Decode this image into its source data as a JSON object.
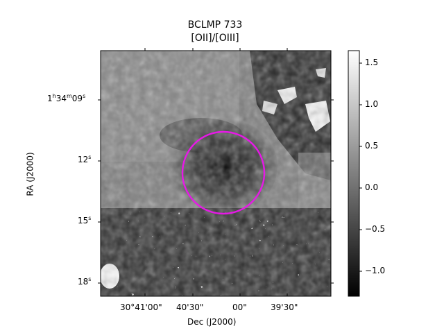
{
  "figure": {
    "title_line1": "BCLMP 733",
    "title_line2": "[OII]/[OIII]",
    "xlabel": "Dec (J2000)",
    "ylabel": "RA (J2000)",
    "x_ticks": [
      "30°41'00\"",
      "40'30\"",
      "00\"",
      "39'30\""
    ],
    "y_ticks": [
      {
        "h": "1",
        "m": "34",
        "s": "09",
        "parts": true
      },
      {
        "label": "12",
        "sup": "s"
      },
      {
        "label": "15",
        "sup": "s"
      },
      {
        "label": "18",
        "sup": "s"
      }
    ],
    "colorbar": {
      "ticks": [
        "1.5",
        "1.0",
        "0.5",
        "0.0",
        "−0.5",
        "−1.0"
      ],
      "values": [
        1.5,
        1.0,
        0.5,
        0.0,
        -0.5,
        -1.0
      ],
      "range": [
        -1.3,
        1.65
      ],
      "colormap": "gray"
    },
    "aperture_color": "#e619e6"
  }
}
